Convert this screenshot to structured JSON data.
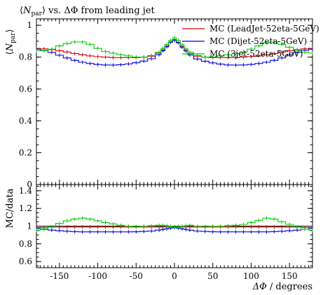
{
  "chart_data": [
    {
      "type": "line",
      "title_parts": {
        "lbr": "⟨",
        "n": "N",
        "sub": "par",
        "rbr": "⟩",
        "rest": " vs. ΔΦ from leading jet"
      },
      "ylabel_parts": {
        "lbr": "⟨",
        "n": "N",
        "sub": "par",
        "rbr": "⟩"
      },
      "xlim": [
        -180,
        180
      ],
      "ylim": [
        0,
        1.04
      ],
      "yticks": [
        0,
        0.2,
        0.4,
        0.6,
        0.8,
        1
      ],
      "ytick_labels": [
        "0",
        "0.2",
        "0.4",
        "0.6",
        "0.8",
        "1"
      ],
      "x": [
        -180,
        -170,
        -160,
        -150,
        -140,
        -130,
        -120,
        -110,
        -100,
        -90,
        -80,
        -70,
        -60,
        -50,
        -40,
        -30,
        -20,
        -15,
        -10,
        -5,
        0,
        5,
        10,
        15,
        20,
        30,
        40,
        50,
        60,
        70,
        80,
        90,
        100,
        110,
        120,
        130,
        140,
        150,
        160,
        170,
        180
      ],
      "series": [
        {
          "name": "MC (LeadJet-52eta-5GeV)",
          "color": "#dd0000",
          "values": [
            0.855,
            0.852,
            0.847,
            0.84,
            0.832,
            0.823,
            0.815,
            0.808,
            0.803,
            0.8,
            0.797,
            0.797,
            0.797,
            0.797,
            0.8,
            0.806,
            0.825,
            0.845,
            0.87,
            0.895,
            0.91,
            0.893,
            0.868,
            0.844,
            0.823,
            0.806,
            0.8,
            0.797,
            0.797,
            0.797,
            0.797,
            0.8,
            0.803,
            0.808,
            0.815,
            0.823,
            0.832,
            0.84,
            0.847,
            0.852,
            0.855
          ]
        },
        {
          "name": "MC (Dijet-52eta-5GeV)",
          "color": "#0000dd",
          "values": [
            0.85,
            0.842,
            0.83,
            0.812,
            0.795,
            0.78,
            0.768,
            0.76,
            0.754,
            0.751,
            0.75,
            0.752,
            0.757,
            0.765,
            0.775,
            0.79,
            0.815,
            0.84,
            0.865,
            0.893,
            0.905,
            0.89,
            0.862,
            0.838,
            0.813,
            0.788,
            0.774,
            0.764,
            0.756,
            0.751,
            0.75,
            0.751,
            0.754,
            0.76,
            0.768,
            0.78,
            0.795,
            0.812,
            0.83,
            0.842,
            0.85
          ]
        },
        {
          "name": "MC (3jet-52eta-5GeV)",
          "color": "#00cc00",
          "values": [
            0.84,
            0.84,
            0.85,
            0.87,
            0.885,
            0.895,
            0.895,
            0.88,
            0.855,
            0.835,
            0.825,
            0.815,
            0.808,
            0.8,
            0.8,
            0.81,
            0.83,
            0.855,
            0.88,
            0.905,
            0.92,
            0.905,
            0.878,
            0.852,
            0.83,
            0.81,
            0.8,
            0.8,
            0.808,
            0.815,
            0.822,
            0.832,
            0.85,
            0.87,
            0.89,
            0.895,
            0.88,
            0.862,
            0.845,
            0.83,
            0.825
          ]
        }
      ],
      "legend_position": "top-right"
    },
    {
      "type": "line",
      "ylabel": "MC/data",
      "xlabel_parts": {
        "delta": "ΔΦ",
        "rest": " / degrees"
      },
      "xlim": [
        -180,
        180
      ],
      "ylim": [
        0.53,
        1.47
      ],
      "yticks": [
        0.6,
        0.8,
        1,
        1.2,
        1.4
      ],
      "ytick_labels": [
        "0.6",
        "0.8",
        "1",
        "1.2",
        "1.4"
      ],
      "xticks": [
        -150,
        -100,
        -50,
        0,
        50,
        100,
        150
      ],
      "xtick_labels": [
        "-150",
        "-100",
        "-50",
        "0",
        "50",
        "100",
        "150"
      ],
      "reference_line": 1,
      "x": [
        -180,
        -170,
        -160,
        -150,
        -140,
        -130,
        -120,
        -110,
        -100,
        -90,
        -80,
        -70,
        -60,
        -50,
        -40,
        -30,
        -20,
        -15,
        -10,
        -5,
        0,
        5,
        10,
        15,
        20,
        30,
        40,
        50,
        60,
        70,
        80,
        90,
        100,
        110,
        120,
        130,
        140,
        150,
        160,
        170,
        180
      ],
      "series": [
        {
          "color": "#dd0000",
          "values": [
            0.985,
            0.985,
            0.987,
            0.988,
            0.99,
            0.99,
            0.99,
            0.99,
            0.99,
            0.99,
            0.99,
            0.99,
            0.99,
            0.99,
            0.99,
            0.99,
            0.99,
            0.99,
            0.99,
            0.99,
            0.99,
            0.99,
            0.99,
            0.99,
            0.99,
            0.99,
            0.99,
            0.99,
            0.99,
            0.99,
            0.99,
            0.99,
            0.99,
            0.99,
            0.99,
            0.99,
            0.99,
            0.988,
            0.987,
            0.985,
            0.985
          ]
        },
        {
          "color": "#0000dd",
          "values": [
            0.975,
            0.965,
            0.955,
            0.948,
            0.942,
            0.938,
            0.935,
            0.935,
            0.935,
            0.935,
            0.935,
            0.935,
            0.935,
            0.936,
            0.94,
            0.945,
            0.955,
            0.962,
            0.97,
            0.978,
            0.982,
            0.978,
            0.97,
            0.962,
            0.955,
            0.945,
            0.94,
            0.936,
            0.935,
            0.935,
            0.935,
            0.935,
            0.935,
            0.935,
            0.935,
            0.938,
            0.942,
            0.948,
            0.955,
            0.965,
            0.975
          ]
        },
        {
          "color": "#00cc00",
          "values": [
            0.955,
            0.97,
            0.99,
            1.03,
            1.06,
            1.08,
            1.09,
            1.08,
            1.06,
            1.04,
            1.025,
            1.01,
            1.0,
            0.995,
            1.0,
            1.005,
            1.01,
            1.01,
            1.005,
            1.0,
            0.99,
            0.995,
            1.0,
            1.005,
            1.01,
            1.0,
            0.995,
            1.0,
            1.0,
            1.005,
            1.01,
            1.02,
            1.04,
            1.065,
            1.09,
            1.08,
            1.05,
            1.02,
            0.99,
            0.965,
            0.955
          ]
        }
      ]
    }
  ]
}
